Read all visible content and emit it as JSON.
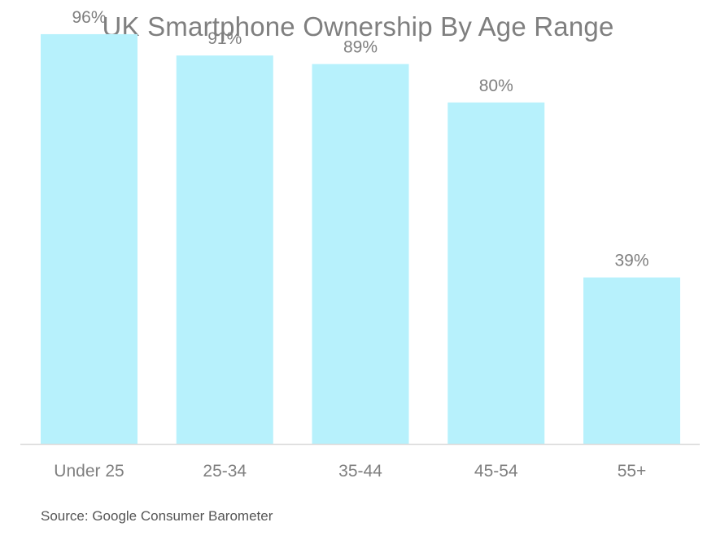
{
  "chart_data": {
    "type": "bar",
    "title": "UK Smartphone Ownership By Age Range",
    "categories": [
      "Under 25",
      "25-34",
      "35-44",
      "45-54",
      "55+"
    ],
    "values": [
      96,
      91,
      89,
      80,
      39
    ],
    "data_labels": [
      "96%",
      "91%",
      "89%",
      "80%",
      "39%"
    ],
    "xlabel": "",
    "ylabel": "",
    "ylim": [
      0,
      100
    ],
    "grid": false,
    "legend": "none",
    "bar_color": "#b7f1fc",
    "axis_color": "#d9d9d9",
    "text_color": "#7f7f7f"
  },
  "source": "Source: Google Consumer Barometer"
}
